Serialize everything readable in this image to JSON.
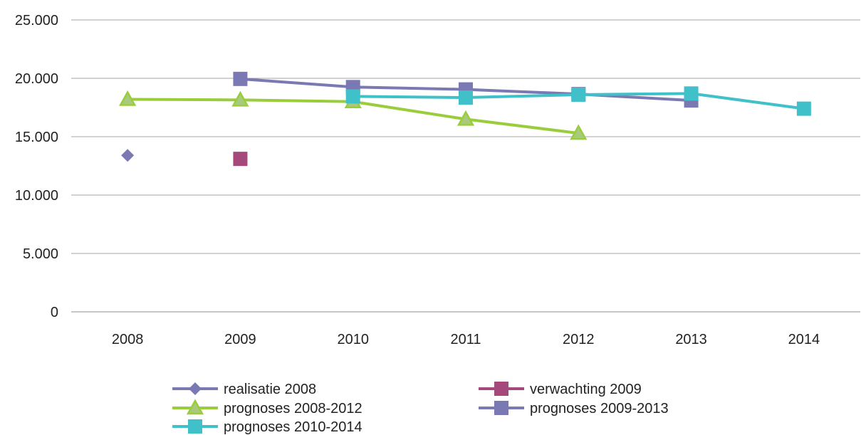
{
  "chart_data": {
    "type": "line",
    "categories": [
      "2008",
      "2009",
      "2010",
      "2011",
      "2012",
      "2013",
      "2014"
    ],
    "y_tick_labels": [
      "0",
      "5.000",
      "10.000",
      "15.000",
      "20.000",
      "25.000"
    ],
    "ylim": [
      0,
      25000
    ],
    "grid": true,
    "legend_position": "bottom",
    "series": [
      {
        "name": "realisatie 2008",
        "marker": "diamond",
        "color": "#7B79B4",
        "line": false,
        "values": [
          13400,
          null,
          null,
          null,
          null,
          null,
          null
        ]
      },
      {
        "name": "verwachting 2009",
        "marker": "square",
        "color": "#A4497A",
        "line": false,
        "values": [
          null,
          13100,
          null,
          null,
          null,
          null,
          null
        ]
      },
      {
        "name": "prognoses 2008-2012",
        "marker": "triangle",
        "color": "#9ACD3C",
        "line": true,
        "values": [
          18200,
          18150,
          18000,
          16500,
          15300,
          null,
          null
        ]
      },
      {
        "name": "prognoses 2009-2013",
        "marker": "square",
        "color": "#7B79B4",
        "line": true,
        "values": [
          null,
          19950,
          19250,
          19050,
          18650,
          18100,
          null
        ]
      },
      {
        "name": "prognoses 2010-2014",
        "marker": "square",
        "color": "#40C0C8",
        "line": true,
        "values": [
          null,
          null,
          18450,
          18350,
          18600,
          18700,
          17400
        ]
      }
    ]
  }
}
